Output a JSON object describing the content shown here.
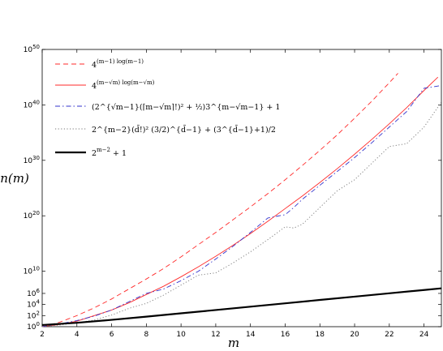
{
  "chart_data": {
    "type": "line",
    "title": "",
    "xlabel": "m",
    "ylabel": "n(m)",
    "xlim": [
      2,
      25
    ],
    "yscale": "log",
    "ylim_exponent": [
      0,
      50
    ],
    "x_ticks": [
      2,
      4,
      6,
      8,
      10,
      12,
      14,
      16,
      18,
      20,
      22,
      24
    ],
    "x_tick_labels": [
      "2",
      "4",
      "6",
      "8",
      "10",
      "12",
      "14",
      "16",
      "18",
      "20",
      "22",
      "24"
    ],
    "y_ticks_exponent": [
      0,
      2,
      4,
      6,
      10,
      20,
      30,
      40,
      50
    ],
    "y_tick_bases": [
      "10",
      "10",
      "10",
      "10",
      "10",
      "10",
      "10",
      "10",
      "10"
    ],
    "y_tick_exps": [
      "0",
      "2",
      "4",
      "6",
      "10",
      "20",
      "30",
      "40",
      "50"
    ],
    "grid": false,
    "legend_position": "top-left",
    "series": [
      {
        "name": "4^{(m-1) log(m-1)}",
        "legend_base": "4",
        "legend_exp": "(m−1) log(m−1)",
        "color": "#ff2a2a",
        "style": "dashed",
        "width": 0.9,
        "x": [
          2,
          3,
          4,
          5,
          6,
          7,
          8,
          9,
          10,
          11,
          12,
          13,
          14,
          15,
          16,
          17,
          18,
          19,
          20,
          21,
          22,
          22.5
        ],
        "log10_y": [
          0,
          0.8,
          2.0,
          3.4,
          5.0,
          6.8,
          8.6,
          10.5,
          12.6,
          14.8,
          17.0,
          19.3,
          21.6,
          24.0,
          26.5,
          29.1,
          31.8,
          34.6,
          37.6,
          40.7,
          44.0,
          45.7
        ]
      },
      {
        "name": "4^{(m-√m) log(m-√m)}",
        "legend_base": "4",
        "legend_exp": "(m−√m) log(m−√m)",
        "color": "#ff2a2a",
        "style": "solid",
        "width": 0.9,
        "x": [
          2,
          3,
          4,
          5,
          6,
          7,
          8,
          9,
          10,
          11,
          12,
          13,
          14,
          15,
          16,
          17,
          18,
          19,
          20,
          21,
          22,
          23,
          24,
          24.8
        ],
        "log10_y": [
          0,
          0.4,
          1.0,
          2.0,
          3.0,
          4.3,
          5.8,
          7.3,
          9.0,
          10.8,
          12.7,
          14.7,
          16.8,
          19.0,
          21.3,
          23.6,
          26.0,
          28.5,
          31.1,
          33.8,
          36.6,
          39.5,
          42.6,
          45.0
        ]
      },
      {
        "name": "(2^{√m-1}(⌈m-√m⌉!)^2 + 1/2)3^{m-√m-1} + 1",
        "legend_main": "(2^{√m−1}(⌈m−√m⌉!)² + ½)3^{m−√m−1} + 1",
        "color": "#3333cc",
        "style": "dashdot",
        "width": 0.9,
        "x": [
          2,
          3,
          4,
          5,
          6,
          7,
          8,
          9,
          10,
          11,
          12,
          13,
          14,
          15,
          16,
          16.5,
          17,
          18,
          19,
          20,
          21,
          22,
          23,
          24,
          25
        ],
        "log10_y": [
          0,
          0.5,
          1.1,
          1.9,
          3.0,
          4.5,
          6.0,
          6.8,
          8.3,
          10.0,
          12.2,
          14.5,
          17.0,
          19.6,
          20.2,
          21.5,
          23.0,
          25.5,
          28.0,
          30.5,
          33.2,
          36.0,
          38.8,
          43.0,
          43.5
        ]
      },
      {
        "name": "2^{m-2}(d̄!)^2 (3/2)^{d̄-1} + (3^{d̄-1}+1)/2",
        "legend_main": "2^{m−2}(d̄!)² (3/2)^{d̄−1} + (3^{d̄−1}+1)/2",
        "color": "#777777",
        "style": "dotted",
        "width": 0.9,
        "x": [
          2,
          3,
          4,
          5,
          6,
          7,
          8,
          9,
          10,
          11,
          12,
          13,
          14,
          15,
          16,
          16.5,
          17,
          18,
          19,
          20,
          21,
          22,
          23,
          24,
          25
        ],
        "log10_y": [
          0,
          0.3,
          0.7,
          1.2,
          2.1,
          3.3,
          4.2,
          5.7,
          7.5,
          9.3,
          9.7,
          11.5,
          13.5,
          15.7,
          18.0,
          17.8,
          18.5,
          21.5,
          24.5,
          26.5,
          29.5,
          32.5,
          33.0,
          36.0,
          40.5
        ]
      },
      {
        "name": "2^{m-2} + 1",
        "legend_base": "2",
        "legend_exp": "m−2",
        "legend_suffix": " + 1",
        "color": "#000000",
        "style": "solid",
        "width": 2.2,
        "x": [
          2,
          4,
          6,
          8,
          10,
          12,
          14,
          16,
          18,
          20,
          22,
          24,
          25
        ],
        "log10_y": [
          0.3,
          0.7,
          1.23,
          1.81,
          2.41,
          3.01,
          3.61,
          4.21,
          4.82,
          5.42,
          6.02,
          6.62,
          6.92
        ]
      }
    ]
  }
}
